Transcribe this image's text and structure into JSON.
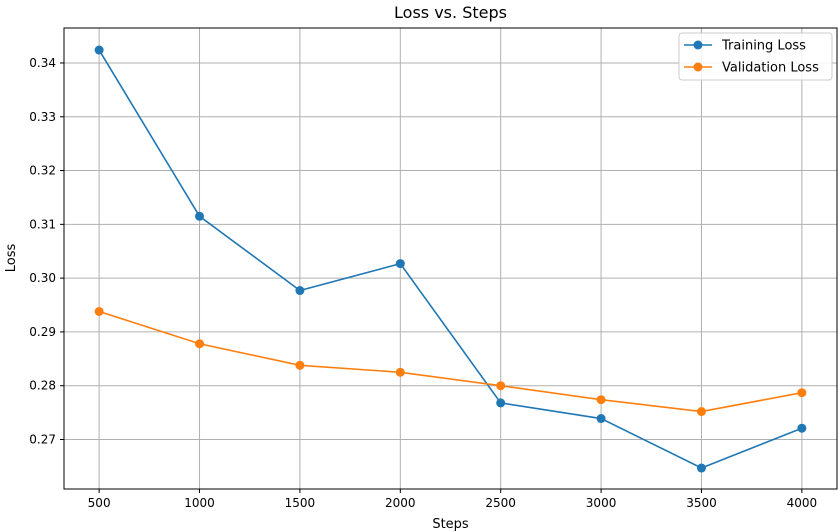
{
  "chart_data": {
    "type": "line",
    "title": "Loss vs. Steps",
    "xlabel": "Steps",
    "ylabel": "Loss",
    "x": [
      500,
      1000,
      1500,
      2000,
      2500,
      3000,
      3500,
      4000
    ],
    "xticks": [
      500,
      1000,
      1500,
      2000,
      2500,
      3000,
      3500,
      4000
    ],
    "yticks": [
      0.27,
      0.28,
      0.29,
      0.3,
      0.31,
      0.32,
      0.33,
      0.34
    ],
    "ytick_labels": [
      "0.27",
      "0.28",
      "0.29",
      "0.30",
      "0.31",
      "0.32",
      "0.33",
      "0.34"
    ],
    "xlim": [
      325,
      4175
    ],
    "ylim": [
      0.2608,
      0.3465
    ],
    "grid": true,
    "legend_position": "top-right",
    "series": [
      {
        "name": "Training Loss",
        "color": "#1f77b4",
        "values": [
          0.3424,
          0.3115,
          0.2977,
          0.3027,
          0.2768,
          0.2739,
          0.2647,
          0.2721
        ]
      },
      {
        "name": "Validation Loss",
        "color": "#ff7f0e",
        "values": [
          0.2938,
          0.2878,
          0.2838,
          0.2825,
          0.28,
          0.2774,
          0.2752,
          0.2787
        ]
      }
    ]
  }
}
